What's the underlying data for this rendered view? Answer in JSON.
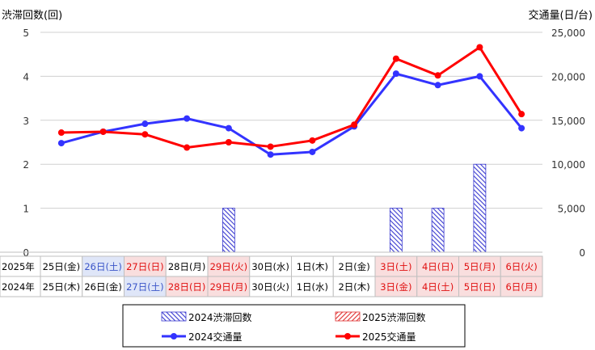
{
  "chart_data": {
    "type": "bar+line",
    "left_axis_label": "渋滞回数(回)",
    "right_axis_label": "交通量(日/台)",
    "left_ticks": [
      "0",
      "1",
      "2",
      "3",
      "4",
      "5"
    ],
    "right_ticks": [
      "0",
      "5,000",
      "10,000",
      "15,000",
      "20,000",
      "25,000"
    ],
    "ylim_left": [
      0,
      5
    ],
    "ylim_right": [
      0,
      25000
    ],
    "categories_2025": [
      "25日(金)",
      "26日(土)",
      "27日(日)",
      "28日(月)",
      "29日(火)",
      "30日(水)",
      "1日(木)",
      "2日(金)",
      "3日(土)",
      "4日(日)",
      "5日(月)",
      "6日(火)"
    ],
    "categories_2024": [
      "25日(木)",
      "26日(金)",
      "27日(土)",
      "28日(日)",
      "29日(月)",
      "30日(火)",
      "1日(水)",
      "2日(木)",
      "3日(金)",
      "4日(土)",
      "5日(日)",
      "6日(月)"
    ],
    "row_labels": [
      "2025年",
      "2024年"
    ],
    "series": [
      {
        "name": "2024渋滞回数",
        "type": "bar",
        "axis": "left",
        "color": "#3a3ad0",
        "values": [
          0,
          0,
          0,
          0,
          1,
          0,
          0,
          0,
          1,
          1,
          2,
          0
        ]
      },
      {
        "name": "2025渋滞回数",
        "type": "bar",
        "axis": "left",
        "color": "#e03030",
        "values": [
          0,
          0,
          0,
          0,
          0,
          0,
          0,
          0,
          0,
          0,
          0,
          0
        ]
      },
      {
        "name": "2024交通量",
        "type": "line",
        "axis": "right",
        "color": "#3333ff",
        "values": [
          12400,
          13700,
          14600,
          15200,
          14100,
          11100,
          11400,
          14300,
          20300,
          19000,
          20000,
          14100
        ]
      },
      {
        "name": "2025交通量",
        "type": "line",
        "axis": "right",
        "color": "#ff0000",
        "values": [
          13600,
          13700,
          13400,
          11900,
          12500,
          12000,
          12700,
          14500,
          22000,
          20100,
          23300,
          15700
        ]
      }
    ],
    "cell_styles_2025": [
      "none",
      "blue",
      "red",
      "none",
      "red",
      "none",
      "none",
      "none",
      "red",
      "red",
      "red",
      "red"
    ],
    "cell_styles_2024": [
      "none",
      "none",
      "blue",
      "red",
      "red",
      "none",
      "none",
      "none",
      "red",
      "red",
      "red",
      "red"
    ],
    "styles": {
      "blue": {
        "bg": "#dfe6f8",
        "fg": "#3a55c8"
      },
      "red": {
        "bg": "#f9dede",
        "fg": "#e01010"
      },
      "none": {
        "bg": "#ffffff",
        "fg": "#000000"
      }
    }
  }
}
